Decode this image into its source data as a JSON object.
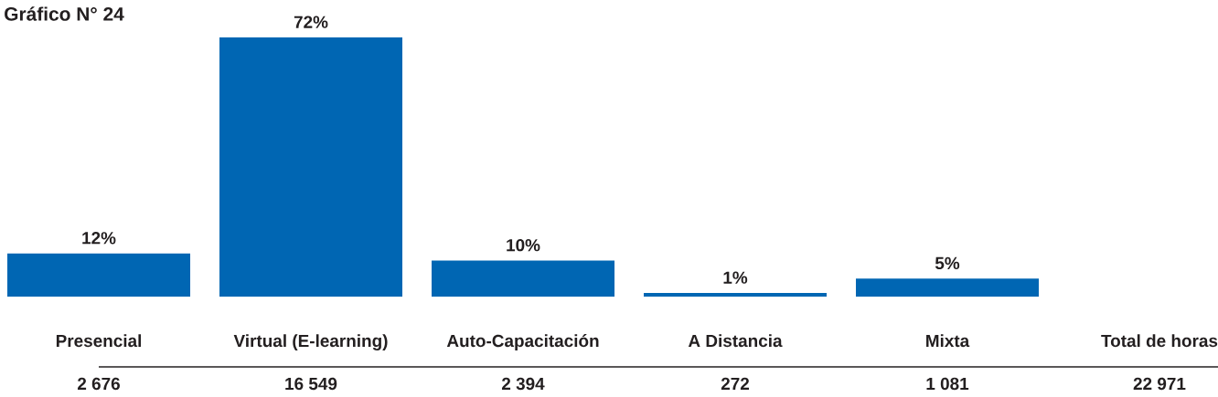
{
  "chart_data": {
    "type": "bar",
    "title": "Gráfico N° 24",
    "categories": [
      "Presencial",
      "Virtual (E-learning)",
      "Auto-Capacitación",
      "A Distancia",
      "Mixta",
      "Total de horas"
    ],
    "values": [
      12,
      72,
      10,
      1,
      5,
      null
    ],
    "value_labels": [
      "12%",
      "72%",
      "10%",
      "1%",
      "5%",
      null
    ],
    "color": "#0066b3",
    "annotations": [
      "2 676",
      "16 549",
      "2 394",
      "272",
      "1 081",
      "22 971"
    ]
  }
}
